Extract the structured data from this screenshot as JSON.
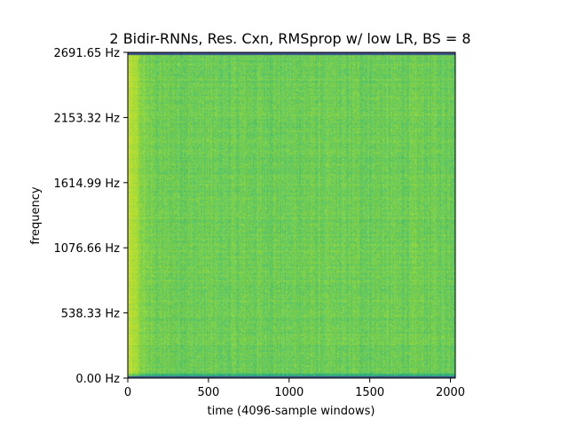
{
  "chart_data": {
    "type": "heatmap",
    "title": "2 Bidir-RNNs, Res. Cxn, RMSprop w/ low LR, BS = 8",
    "xlabel": "time (4096-sample windows)",
    "ylabel": "frequency",
    "xlim": [
      0,
      2030
    ],
    "ylim": [
      0,
      2691.65
    ],
    "x_ticks": [
      0,
      500,
      1000,
      1500,
      2000
    ],
    "x_tick_labels": [
      "0",
      "500",
      "1000",
      "1500",
      "2000"
    ],
    "y_ticks": [
      0,
      538.33,
      1076.66,
      1614.99,
      2153.32,
      2691.65
    ],
    "y_tick_labels": [
      "0.00 Hz",
      "538.33 Hz",
      "1076.66 Hz",
      "1614.99 Hz",
      "2153.32 Hz",
      "2691.65 Hz"
    ],
    "colormap": "viridis",
    "dominant_color": "#8fcf4a",
    "grid": false
  }
}
